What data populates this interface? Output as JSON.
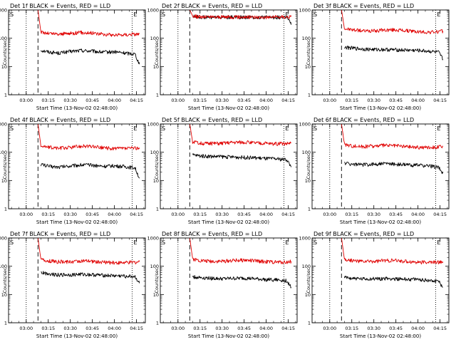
{
  "colors": {
    "events": "#000000",
    "lld": "#e00000",
    "background": "#ffffff",
    "axes": "#000000"
  },
  "chart_data": [
    {
      "type": "line",
      "title": "Det 1f BLACK = Events, RED = LLD",
      "xlabel": "Start Time (13-Nov-02 02:48:00)",
      "ylabel": "Counts/sec",
      "yscale": "log",
      "ylim": [
        1,
        1000
      ],
      "yticks": [
        "1",
        "10",
        "100",
        "1000"
      ],
      "xlim": [
        "02:48",
        "04:21"
      ],
      "xticks": [
        "03:00",
        "03:15",
        "03:30",
        "03:45",
        "04:00",
        "04:15"
      ],
      "markers": {
        "start_label": "S",
        "end_label": "E",
        "dotted_lines": [
          "03:00",
          "04:12"
        ],
        "dashed_line": "03:08"
      },
      "series": [
        {
          "name": "Events",
          "x": [
            "03:10",
            "03:15",
            "03:22",
            "03:30",
            "03:37",
            "03:45",
            "03:52",
            "04:00",
            "04:07",
            "04:14",
            "04:17"
          ],
          "values": [
            38,
            33,
            30,
            34,
            37,
            35,
            32,
            33,
            30,
            28,
            12
          ]
        },
        {
          "name": "LLD",
          "x": [
            "03:08",
            "03:10",
            "03:15",
            "03:22",
            "03:30",
            "03:37",
            "03:45",
            "03:52",
            "04:00",
            "04:07",
            "04:14",
            "04:17"
          ],
          "values": [
            1000,
            165,
            150,
            140,
            150,
            160,
            155,
            140,
            130,
            135,
            140,
            145
          ]
        }
      ],
      "grid": false,
      "legend": "none"
    },
    {
      "type": "line",
      "title": "Det 2f BLACK = Events, RED = LLD",
      "xlabel": "Start Time (13-Nov-02 02:48:00)",
      "ylabel": "Counts/sec",
      "yscale": "log",
      "ylim": [
        1,
        1000
      ],
      "yticks": [
        "1",
        "10",
        "100",
        "1000"
      ],
      "xlim": [
        "02:48",
        "04:21"
      ],
      "xticks": [
        "03:00",
        "03:15",
        "03:30",
        "03:45",
        "04:00",
        "04:15"
      ],
      "markers": {
        "start_label": "S",
        "end_label": "E",
        "dotted_lines": [
          "03:00",
          "04:12"
        ],
        "dashed_line": "03:08"
      },
      "series": [
        {
          "name": "Events",
          "x": [
            "03:10",
            "03:15",
            "03:22",
            "03:30",
            "03:37",
            "03:45",
            "03:52",
            "04:00",
            "04:07",
            "04:14",
            "04:17"
          ],
          "values": [
            600,
            560,
            550,
            555,
            560,
            560,
            555,
            550,
            550,
            560,
            300
          ]
        },
        {
          "name": "LLD",
          "x": [
            "03:08",
            "03:10",
            "03:15",
            "03:22",
            "03:30",
            "03:37",
            "03:45",
            "03:52",
            "04:00",
            "04:07",
            "04:14",
            "04:17"
          ],
          "values": [
            1000,
            620,
            570,
            560,
            565,
            570,
            565,
            560,
            560,
            565,
            570,
            580
          ]
        }
      ],
      "grid": false,
      "legend": "none"
    },
    {
      "type": "line",
      "title": "Det 3f BLACK = Events, RED = LLD",
      "xlabel": "Start Time (13-Nov-02 02:48:00)",
      "ylabel": "Counts/sec",
      "yscale": "log",
      "ylim": [
        1,
        1000
      ],
      "yticks": [
        "1",
        "10",
        "100",
        "1000"
      ],
      "xlim": [
        "02:48",
        "04:21"
      ],
      "xticks": [
        "03:00",
        "03:15",
        "03:30",
        "03:45",
        "04:00",
        "04:15"
      ],
      "markers": {
        "start_label": "S",
        "end_label": "E",
        "dotted_lines": [
          "03:00",
          "04:12"
        ],
        "dashed_line": "03:08"
      },
      "series": [
        {
          "name": "Events",
          "x": [
            "03:10",
            "03:15",
            "03:22",
            "03:30",
            "03:37",
            "03:45",
            "03:52",
            "04:00",
            "04:07",
            "04:14",
            "04:17"
          ],
          "values": [
            48,
            45,
            42,
            40,
            40,
            39,
            38,
            37,
            35,
            32,
            18
          ]
        },
        {
          "name": "LLD",
          "x": [
            "03:08",
            "03:10",
            "03:15",
            "03:22",
            "03:30",
            "03:37",
            "03:45",
            "03:52",
            "04:00",
            "04:07",
            "04:14",
            "04:17"
          ],
          "values": [
            1000,
            220,
            200,
            185,
            180,
            195,
            200,
            185,
            170,
            165,
            170,
            180
          ]
        }
      ],
      "grid": false,
      "legend": "none"
    },
    {
      "type": "line",
      "title": "Det 4f BLACK = Events, RED = LLD",
      "xlabel": "Start Time (13-Nov-02 02:48:00)",
      "ylabel": "Counts/sec",
      "yscale": "log",
      "ylim": [
        1,
        1000
      ],
      "yticks": [
        "1",
        "10",
        "100",
        "1000"
      ],
      "xlim": [
        "02:48",
        "04:21"
      ],
      "xticks": [
        "03:00",
        "03:15",
        "03:30",
        "03:45",
        "04:00",
        "04:15"
      ],
      "markers": {
        "start_label": "S",
        "end_label": "E",
        "dotted_lines": [
          "03:00",
          "04:12"
        ],
        "dashed_line": "03:08"
      },
      "series": [
        {
          "name": "Events",
          "x": [
            "03:10",
            "03:15",
            "03:22",
            "03:30",
            "03:37",
            "03:45",
            "03:52",
            "04:00",
            "04:07",
            "04:14",
            "04:17"
          ],
          "values": [
            38,
            32,
            30,
            33,
            36,
            35,
            32,
            33,
            31,
            28,
            12
          ]
        },
        {
          "name": "LLD",
          "x": [
            "03:08",
            "03:10",
            "03:15",
            "03:22",
            "03:30",
            "03:37",
            "03:45",
            "03:52",
            "04:00",
            "04:07",
            "04:14",
            "04:17"
          ],
          "values": [
            1000,
            170,
            150,
            140,
            150,
            165,
            160,
            145,
            135,
            135,
            140,
            145
          ]
        }
      ],
      "grid": false,
      "legend": "none"
    },
    {
      "type": "line",
      "title": "Det 5f BLACK = Events, RED = LLD",
      "xlabel": "Start Time (13-Nov-02 02:48:00)",
      "ylabel": "Counts/sec",
      "yscale": "log",
      "ylim": [
        1,
        1000
      ],
      "yticks": [
        "1",
        "10",
        "100",
        "1000"
      ],
      "xlim": [
        "02:48",
        "04:21"
      ],
      "xticks": [
        "03:00",
        "03:15",
        "03:30",
        "03:45",
        "04:00",
        "04:15"
      ],
      "markers": {
        "start_label": "S",
        "end_label": "E",
        "dotted_lines": [
          "03:00",
          "04:12"
        ],
        "dashed_line": "03:08"
      },
      "series": [
        {
          "name": "Events",
          "x": [
            "03:10",
            "03:15",
            "03:22",
            "03:30",
            "03:37",
            "03:45",
            "03:52",
            "04:00",
            "04:07",
            "04:14",
            "04:17"
          ],
          "values": [
            80,
            75,
            72,
            70,
            68,
            66,
            64,
            60,
            58,
            55,
            30
          ]
        },
        {
          "name": "LLD",
          "x": [
            "03:08",
            "03:10",
            "03:15",
            "03:22",
            "03:30",
            "03:37",
            "03:45",
            "03:52",
            "04:00",
            "04:07",
            "04:14",
            "04:17"
          ],
          "values": [
            1000,
            230,
            210,
            205,
            210,
            225,
            230,
            215,
            205,
            200,
            205,
            220
          ]
        }
      ],
      "grid": false,
      "legend": "none"
    },
    {
      "type": "line",
      "title": "Det 6f BLACK = Events, RED = LLD",
      "xlabel": "Start Time (13-Nov-02 02:48:00)",
      "ylabel": "Counts/sec",
      "yscale": "log",
      "ylim": [
        1,
        1000
      ],
      "yticks": [
        "1",
        "10",
        "100",
        "1000"
      ],
      "xlim": [
        "02:48",
        "04:21"
      ],
      "xticks": [
        "03:00",
        "03:15",
        "03:30",
        "03:45",
        "04:00",
        "04:15"
      ],
      "markers": {
        "start_label": "S",
        "end_label": "E",
        "dotted_lines": [
          "03:00",
          "04:12"
        ],
        "dashed_line": "03:08"
      },
      "series": [
        {
          "name": "Events",
          "x": [
            "03:10",
            "03:15",
            "03:22",
            "03:30",
            "03:37",
            "03:45",
            "03:52",
            "04:00",
            "04:07",
            "04:14",
            "04:17"
          ],
          "values": [
            42,
            38,
            36,
            38,
            40,
            38,
            36,
            35,
            33,
            30,
            18
          ]
        },
        {
          "name": "LLD",
          "x": [
            "03:08",
            "03:10",
            "03:15",
            "03:22",
            "03:30",
            "03:37",
            "03:45",
            "03:52",
            "04:00",
            "04:07",
            "04:14",
            "04:17"
          ],
          "values": [
            1000,
            190,
            170,
            160,
            165,
            175,
            170,
            160,
            150,
            150,
            155,
            160
          ]
        }
      ],
      "grid": false,
      "legend": "none"
    },
    {
      "type": "line",
      "title": "Det 7f BLACK = Events, RED = LLD",
      "xlabel": "Start Time (13-Nov-02 02:48:00)",
      "ylabel": "Counts/sec",
      "yscale": "log",
      "ylim": [
        1,
        1000
      ],
      "yticks": [
        "1",
        "10",
        "100",
        "1000"
      ],
      "xlim": [
        "02:48",
        "04:21"
      ],
      "xticks": [
        "03:00",
        "03:15",
        "03:30",
        "03:45",
        "04:00",
        "04:15"
      ],
      "markers": {
        "start_label": "S",
        "end_label": "E",
        "dotted_lines": [
          "03:00",
          "04:12"
        ],
        "dashed_line": "03:08"
      },
      "series": [
        {
          "name": "Events",
          "x": [
            "03:10",
            "03:15",
            "03:22",
            "03:30",
            "03:37",
            "03:45",
            "03:52",
            "04:00",
            "04:07",
            "04:14",
            "04:17"
          ],
          "values": [
            60,
            55,
            50,
            50,
            52,
            50,
            48,
            46,
            45,
            43,
            25
          ]
        },
        {
          "name": "LLD",
          "x": [
            "03:08",
            "03:10",
            "03:15",
            "03:22",
            "03:30",
            "03:37",
            "03:45",
            "03:52",
            "04:00",
            "04:07",
            "04:14",
            "04:17"
          ],
          "values": [
            1000,
            170,
            155,
            145,
            145,
            155,
            150,
            140,
            135,
            135,
            140,
            145
          ]
        }
      ],
      "grid": false,
      "legend": "none"
    },
    {
      "type": "line",
      "title": "Det 8f BLACK = Events, RED = LLD",
      "xlabel": "Start Time (13-Nov-02 02:48:00)",
      "ylabel": "Counts/sec",
      "yscale": "log",
      "ylim": [
        1,
        1000
      ],
      "yticks": [
        "1",
        "10",
        "100",
        "1000"
      ],
      "xlim": [
        "02:48",
        "04:21"
      ],
      "xticks": [
        "03:00",
        "03:15",
        "03:30",
        "03:45",
        "04:00",
        "04:15"
      ],
      "markers": {
        "start_label": "S",
        "end_label": "E",
        "dotted_lines": [
          "03:00",
          "04:12"
        ],
        "dashed_line": "03:08"
      },
      "series": [
        {
          "name": "Events",
          "x": [
            "03:10",
            "03:15",
            "03:22",
            "03:30",
            "03:37",
            "03:45",
            "03:52",
            "04:00",
            "04:07",
            "04:14",
            "04:17"
          ],
          "values": [
            42,
            40,
            38,
            36,
            37,
            38,
            36,
            34,
            33,
            31,
            18
          ]
        },
        {
          "name": "LLD",
          "x": [
            "03:08",
            "03:10",
            "03:15",
            "03:22",
            "03:30",
            "03:37",
            "03:45",
            "03:52",
            "04:00",
            "04:07",
            "04:14",
            "04:17"
          ],
          "values": [
            1000,
            180,
            160,
            150,
            150,
            160,
            165,
            155,
            145,
            140,
            140,
            150
          ]
        }
      ],
      "grid": false,
      "legend": "none"
    },
    {
      "type": "line",
      "title": "Det 9f BLACK = Events, RED = LLD",
      "xlabel": "Start Time (13-Nov-02 02:48:00)",
      "ylabel": "Counts/sec",
      "yscale": "log",
      "ylim": [
        1,
        1000
      ],
      "yticks": [
        "1",
        "10",
        "100",
        "1000"
      ],
      "xlim": [
        "02:48",
        "04:21"
      ],
      "xticks": [
        "03:00",
        "03:15",
        "03:30",
        "03:45",
        "04:00",
        "04:15"
      ],
      "markers": {
        "start_label": "S",
        "end_label": "E",
        "dotted_lines": [
          "03:00",
          "04:12"
        ],
        "dashed_line": "03:08"
      },
      "series": [
        {
          "name": "Events",
          "x": [
            "03:10",
            "03:15",
            "03:22",
            "03:30",
            "03:37",
            "03:45",
            "03:52",
            "04:00",
            "04:07",
            "04:14",
            "04:17"
          ],
          "values": [
            40,
            38,
            35,
            36,
            37,
            36,
            35,
            34,
            32,
            30,
            18
          ]
        },
        {
          "name": "LLD",
          "x": [
            "03:08",
            "03:10",
            "03:15",
            "03:22",
            "03:30",
            "03:37",
            "03:45",
            "03:52",
            "04:00",
            "04:07",
            "04:14",
            "04:17"
          ],
          "values": [
            1000,
            175,
            160,
            150,
            150,
            160,
            158,
            148,
            140,
            138,
            140,
            145
          ]
        }
      ],
      "grid": false,
      "legend": "none"
    }
  ]
}
